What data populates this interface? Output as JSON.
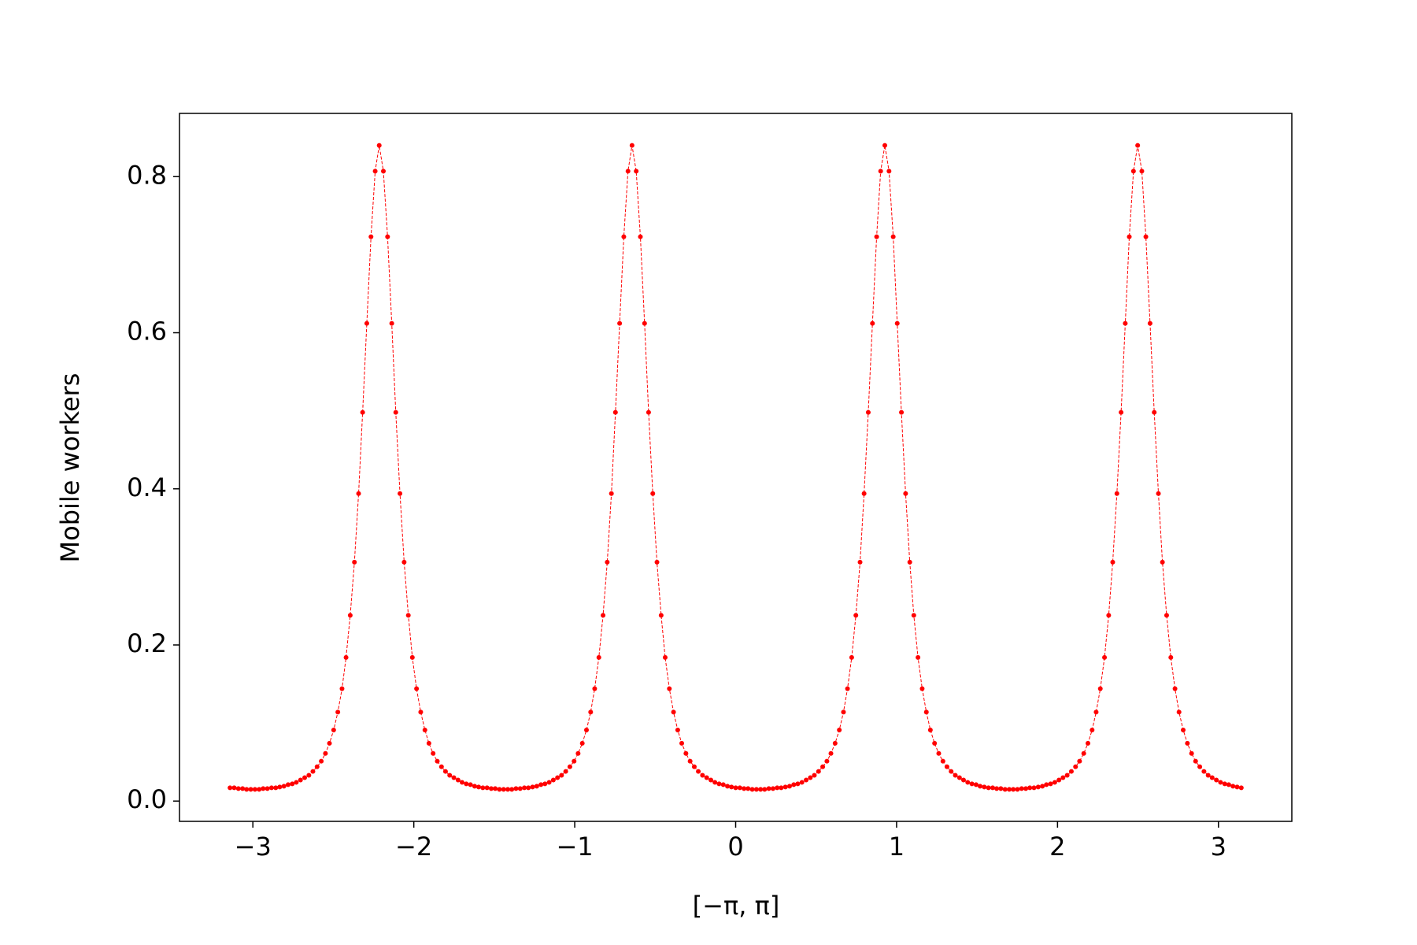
{
  "chart_data": {
    "type": "line",
    "xlabel": "[−π, π]",
    "ylabel": "Mobile workers",
    "x": [
      -3.142,
      -3.116,
      -3.09,
      -3.064,
      -3.039,
      -3.013,
      -2.987,
      -2.961,
      -2.936,
      -2.91,
      -2.884,
      -2.858,
      -2.833,
      -2.807,
      -2.781,
      -2.755,
      -2.73,
      -2.704,
      -2.678,
      -2.652,
      -2.627,
      -2.601,
      -2.575,
      -2.549,
      -2.524,
      -2.498,
      -2.472,
      -2.446,
      -2.421,
      -2.395,
      -2.369,
      -2.343,
      -2.318,
      -2.292,
      -2.266,
      -2.24,
      -2.215,
      -2.189,
      -2.163,
      -2.137,
      -2.112,
      -2.086,
      -2.06,
      -2.034,
      -2.009,
      -1.983,
      -1.957,
      -1.931,
      -1.906,
      -1.88,
      -1.854,
      -1.828,
      -1.803,
      -1.777,
      -1.751,
      -1.725,
      -1.7,
      -1.674,
      -1.648,
      -1.622,
      -1.597,
      -1.571,
      -1.545,
      -1.519,
      -1.494,
      -1.468,
      -1.442,
      -1.416,
      -1.391,
      -1.365,
      -1.339,
      -1.313,
      -1.288,
      -1.262,
      -1.236,
      -1.21,
      -1.185,
      -1.159,
      -1.133,
      -1.107,
      -1.082,
      -1.056,
      -1.03,
      -1.004,
      -0.979,
      -0.953,
      -0.927,
      -0.901,
      -0.876,
      -0.85,
      -0.824,
      -0.798,
      -0.772,
      -0.747,
      -0.721,
      -0.695,
      -0.669,
      -0.644,
      -0.618,
      -0.592,
      -0.566,
      -0.541,
      -0.515,
      -0.489,
      -0.463,
      -0.438,
      -0.412,
      -0.386,
      -0.36,
      -0.335,
      -0.309,
      -0.283,
      -0.257,
      -0.232,
      -0.206,
      -0.18,
      -0.154,
      -0.129,
      -0.103,
      -0.077,
      -0.051,
      -0.026,
      0.0,
      0.026,
      0.052,
      0.077,
      0.103,
      0.129,
      0.155,
      0.18,
      0.206,
      0.232,
      0.258,
      0.283,
      0.309,
      0.335,
      0.361,
      0.386,
      0.412,
      0.438,
      0.464,
      0.489,
      0.515,
      0.541,
      0.567,
      0.592,
      0.618,
      0.644,
      0.67,
      0.695,
      0.721,
      0.747,
      0.773,
      0.798,
      0.824,
      0.85,
      0.876,
      0.901,
      0.927,
      0.953,
      0.979,
      1.004,
      1.03,
      1.056,
      1.082,
      1.107,
      1.133,
      1.159,
      1.185,
      1.21,
      1.236,
      1.262,
      1.288,
      1.313,
      1.339,
      1.365,
      1.391,
      1.416,
      1.442,
      1.468,
      1.494,
      1.519,
      1.545,
      1.571,
      1.597,
      1.622,
      1.648,
      1.674,
      1.7,
      1.725,
      1.751,
      1.777,
      1.803,
      1.828,
      1.854,
      1.88,
      1.906,
      1.931,
      1.957,
      1.983,
      2.009,
      2.034,
      2.06,
      2.086,
      2.112,
      2.137,
      2.163,
      2.189,
      2.215,
      2.24,
      2.266,
      2.292,
      2.318,
      2.343,
      2.369,
      2.395,
      2.421,
      2.446,
      2.472,
      2.498,
      2.524,
      2.549,
      2.575,
      2.601,
      2.627,
      2.652,
      2.678,
      2.704,
      2.73,
      2.755,
      2.781,
      2.807,
      2.833,
      2.858,
      2.884,
      2.91,
      2.936,
      2.961,
      2.987,
      3.013,
      3.039,
      3.064,
      3.09,
      3.116,
      3.142
    ],
    "series": [
      {
        "color": "#ff0000",
        "values": [
          0.017,
          0.017,
          0.016,
          0.016,
          0.015,
          0.015,
          0.015,
          0.015,
          0.016,
          0.016,
          0.017,
          0.017,
          0.018,
          0.019,
          0.021,
          0.022,
          0.024,
          0.027,
          0.03,
          0.033,
          0.038,
          0.044,
          0.051,
          0.061,
          0.074,
          0.091,
          0.114,
          0.144,
          0.184,
          0.238,
          0.306,
          0.394,
          0.498,
          0.612,
          0.723,
          0.807,
          0.84,
          0.807,
          0.723,
          0.612,
          0.498,
          0.394,
          0.306,
          0.238,
          0.184,
          0.144,
          0.114,
          0.091,
          0.074,
          0.061,
          0.051,
          0.044,
          0.038,
          0.033,
          0.03,
          0.027,
          0.024,
          0.022,
          0.021,
          0.019,
          0.018,
          0.017,
          0.017,
          0.016,
          0.016,
          0.015,
          0.015,
          0.015,
          0.015,
          0.016,
          0.016,
          0.017,
          0.017,
          0.018,
          0.019,
          0.021,
          0.022,
          0.024,
          0.027,
          0.03,
          0.033,
          0.038,
          0.044,
          0.051,
          0.061,
          0.074,
          0.091,
          0.114,
          0.144,
          0.184,
          0.238,
          0.306,
          0.394,
          0.498,
          0.612,
          0.723,
          0.807,
          0.84,
          0.807,
          0.723,
          0.612,
          0.498,
          0.394,
          0.306,
          0.238,
          0.184,
          0.144,
          0.114,
          0.091,
          0.074,
          0.061,
          0.051,
          0.044,
          0.038,
          0.033,
          0.03,
          0.027,
          0.024,
          0.022,
          0.021,
          0.019,
          0.018,
          0.017,
          0.017,
          0.016,
          0.016,
          0.015,
          0.015,
          0.015,
          0.015,
          0.016,
          0.016,
          0.017,
          0.017,
          0.018,
          0.019,
          0.021,
          0.022,
          0.024,
          0.027,
          0.03,
          0.033,
          0.038,
          0.044,
          0.051,
          0.061,
          0.074,
          0.091,
          0.114,
          0.144,
          0.184,
          0.238,
          0.306,
          0.394,
          0.498,
          0.612,
          0.723,
          0.807,
          0.84,
          0.807,
          0.723,
          0.612,
          0.498,
          0.394,
          0.306,
          0.238,
          0.184,
          0.144,
          0.114,
          0.091,
          0.074,
          0.061,
          0.051,
          0.044,
          0.038,
          0.033,
          0.03,
          0.027,
          0.024,
          0.022,
          0.021,
          0.019,
          0.018,
          0.017,
          0.017,
          0.016,
          0.016,
          0.015,
          0.015,
          0.015,
          0.015,
          0.016,
          0.016,
          0.017,
          0.017,
          0.018,
          0.019,
          0.021,
          0.022,
          0.024,
          0.027,
          0.03,
          0.033,
          0.038,
          0.044,
          0.051,
          0.061,
          0.074,
          0.091,
          0.114,
          0.144,
          0.184,
          0.238,
          0.306,
          0.394,
          0.498,
          0.612,
          0.723,
          0.807,
          0.84,
          0.807,
          0.723,
          0.612,
          0.498,
          0.394,
          0.306,
          0.238,
          0.184,
          0.144,
          0.114,
          0.091,
          0.074,
          0.061,
          0.051,
          0.044,
          0.038,
          0.033,
          0.03,
          0.027,
          0.024,
          0.022,
          0.021,
          0.019,
          0.018,
          0.017
        ]
      }
    ],
    "xlim": [
      -3.456,
      3.456
    ],
    "xticks": [
      {
        "value": -3,
        "label": "−3"
      },
      {
        "value": -2,
        "label": "−2"
      },
      {
        "value": -1,
        "label": "−1"
      },
      0,
      1,
      2,
      3
    ],
    "ylim": [
      -0.026,
      0.881
    ],
    "yticks": [
      {
        "value": 0,
        "label": "0.0"
      },
      0.2,
      0.4,
      0.6,
      0.8
    ],
    "grid": false
  }
}
